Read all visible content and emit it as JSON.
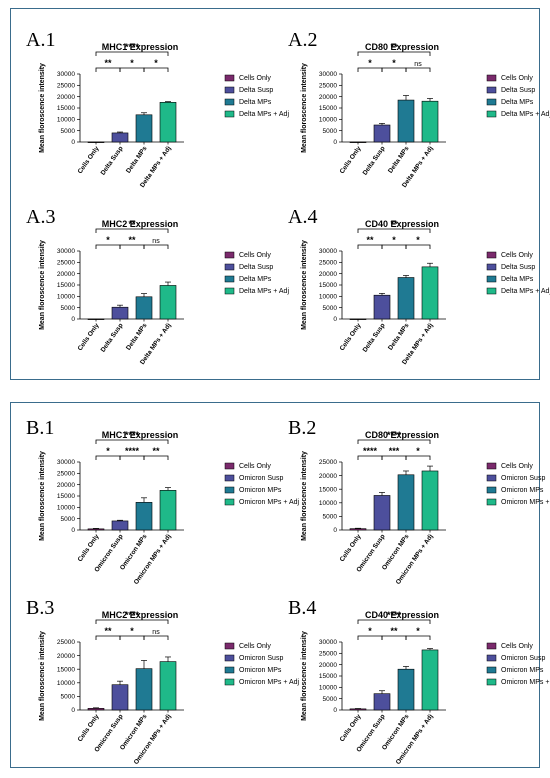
{
  "colors": {
    "frame": "#3a6c8c",
    "bar_colors": [
      "#7a2a6c",
      "#4d4f9c",
      "#1f7a93",
      "#1fb989"
    ]
  },
  "chart_data": [
    {
      "panel": "A.1",
      "type": "bar",
      "title": "MHC1 Expression",
      "ylabel": "Mean floroscence intensity",
      "categories": [
        "Cells Only",
        "Delta Susp",
        "Delta MPs",
        "Delta MPs + Adj"
      ],
      "values": [
        0,
        4000,
        12000,
        17500
      ],
      "errors": [
        0,
        400,
        900,
        300
      ],
      "yticks": [
        0,
        5000,
        10000,
        15000,
        20000,
        25000,
        30000
      ],
      "ylim": [
        0,
        30000
      ],
      "legend": [
        "Cells Only",
        "Delta Susp",
        "Delta MPs",
        "Delta MPs + Adj"
      ],
      "significance": [
        {
          "from": 0,
          "to": 1,
          "label": "**",
          "level": 0
        },
        {
          "from": 1,
          "to": 2,
          "label": "*",
          "level": 0
        },
        {
          "from": 2,
          "to": 3,
          "label": "*",
          "level": 0
        },
        {
          "from": 0,
          "to": 3,
          "label": "****",
          "level": 1
        }
      ]
    },
    {
      "panel": "A.2",
      "type": "bar",
      "title": "CD80 Expression",
      "ylabel": "Mean floroscence intensity",
      "categories": [
        "Cells Only",
        "Delta Susp",
        "Delta MPs",
        "Delta MPs + Adj"
      ],
      "values": [
        0,
        7500,
        18500,
        18000
      ],
      "errors": [
        0,
        700,
        2000,
        1200
      ],
      "yticks": [
        0,
        5000,
        10000,
        15000,
        20000,
        25000,
        30000
      ],
      "ylim": [
        0,
        30000
      ],
      "legend": [
        "Cells Only",
        "Delta Susp",
        "Delta MPs",
        "Delta MPs + Adj"
      ],
      "significance": [
        {
          "from": 0,
          "to": 1,
          "label": "*",
          "level": 0
        },
        {
          "from": 1,
          "to": 2,
          "label": "*",
          "level": 0
        },
        {
          "from": 2,
          "to": 3,
          "label": "ns",
          "level": 0
        },
        {
          "from": 0,
          "to": 3,
          "label": "**",
          "level": 1
        }
      ]
    },
    {
      "panel": "A.3",
      "type": "bar",
      "title": "MHC2 Expression",
      "ylabel": "Mean floroscence intensity",
      "categories": [
        "Cells Only",
        "Delta Susp",
        "Delta MPs",
        "Delta MPs + Adj"
      ],
      "values": [
        0,
        5200,
        9800,
        14800
      ],
      "errors": [
        0,
        900,
        1400,
        1500
      ],
      "yticks": [
        0,
        5000,
        10000,
        15000,
        20000,
        25000,
        30000
      ],
      "ylim": [
        0,
        30000
      ],
      "legend": [
        "Cells Only",
        "Delta Susp",
        "Delta MPs",
        "Delta MPs + Adj"
      ],
      "significance": [
        {
          "from": 0,
          "to": 1,
          "label": "*",
          "level": 0
        },
        {
          "from": 1,
          "to": 2,
          "label": "**",
          "level": 0
        },
        {
          "from": 2,
          "to": 3,
          "label": "ns",
          "level": 0
        },
        {
          "from": 0,
          "to": 3,
          "label": "**",
          "level": 1
        }
      ]
    },
    {
      "panel": "A.4",
      "type": "bar",
      "title": "CD40 Expression",
      "ylabel": "Mean floroscence intensity",
      "categories": [
        "Cells Only",
        "Delta Susp",
        "Delta MPs",
        "Delta MPs + Adj"
      ],
      "values": [
        0,
        10500,
        18300,
        23000
      ],
      "errors": [
        0,
        800,
        900,
        1600
      ],
      "yticks": [
        0,
        5000,
        10000,
        15000,
        20000,
        25000,
        30000
      ],
      "ylim": [
        0,
        30000
      ],
      "legend": [
        "Cells Only",
        "Delta Susp",
        "Delta MPs",
        "Delta MPs + Adj"
      ],
      "significance": [
        {
          "from": 0,
          "to": 1,
          "label": "**",
          "level": 0
        },
        {
          "from": 1,
          "to": 2,
          "label": "*",
          "level": 0
        },
        {
          "from": 2,
          "to": 3,
          "label": "*",
          "level": 0
        },
        {
          "from": 0,
          "to": 3,
          "label": "**",
          "level": 1
        }
      ]
    },
    {
      "panel": "B.1",
      "type": "bar",
      "title": "MHC1 Expression",
      "ylabel": "Mean floroscence intensity",
      "categories": [
        "Cells Only",
        "Omicron Susp",
        "Omicron MPs",
        "Omicron MPs + Adj"
      ],
      "values": [
        500,
        4000,
        12200,
        17500
      ],
      "errors": [
        200,
        300,
        2000,
        1200
      ],
      "yticks": [
        0,
        5000,
        10000,
        15000,
        20000,
        25000,
        30000
      ],
      "ylim": [
        0,
        30000
      ],
      "legend": [
        "Cells Only",
        "Omicron Susp",
        "Omicron MPs",
        "Omicron MPs + Adj"
      ],
      "significance": [
        {
          "from": 0,
          "to": 1,
          "label": "*",
          "level": 0
        },
        {
          "from": 1,
          "to": 2,
          "label": "****",
          "level": 0
        },
        {
          "from": 2,
          "to": 3,
          "label": "**",
          "level": 0
        },
        {
          "from": 0,
          "to": 3,
          "label": "****",
          "level": 1
        }
      ]
    },
    {
      "panel": "B.2",
      "type": "bar",
      "title": "CD80 Expression",
      "ylabel": "Mean floroscence intensity",
      "categories": [
        "Cells Only",
        "Omicron Susp",
        "Omicron MPs",
        "Omicron MPs + Adj"
      ],
      "values": [
        500,
        12700,
        20300,
        21700
      ],
      "errors": [
        150,
        1100,
        1400,
        1800
      ],
      "yticks": [
        0,
        5000,
        10000,
        15000,
        20000,
        25000
      ],
      "ylim": [
        0,
        25000
      ],
      "legend": [
        "Cells Only",
        "Omicron Susp",
        "Omicron MPs",
        "Omicron MPs + Adj"
      ],
      "significance": [
        {
          "from": 0,
          "to": 1,
          "label": "****",
          "level": 0
        },
        {
          "from": 1,
          "to": 2,
          "label": "***",
          "level": 0
        },
        {
          "from": 2,
          "to": 3,
          "label": "*",
          "level": 0
        },
        {
          "from": 0,
          "to": 3,
          "label": "****",
          "level": 1
        }
      ]
    },
    {
      "panel": "B.3",
      "type": "bar",
      "title": "MHC2 Expression",
      "ylabel": "Mean floroscence intensity",
      "categories": [
        "Cells Only",
        "Omicron Susp",
        "Omicron MPs",
        "Omicron MPs + Adj"
      ],
      "values": [
        600,
        9300,
        15200,
        17800
      ],
      "errors": [
        200,
        1300,
        3000,
        1700
      ],
      "yticks": [
        0,
        5000,
        10000,
        15000,
        20000,
        25000
      ],
      "ylim": [
        0,
        25000
      ],
      "legend": [
        "Cells Only",
        "Omicron Susp",
        "Omicron MPs",
        "Omicron MPs + Adj"
      ],
      "significance": [
        {
          "from": 0,
          "to": 1,
          "label": "**",
          "level": 0
        },
        {
          "from": 1,
          "to": 2,
          "label": "*",
          "level": 0
        },
        {
          "from": 2,
          "to": 3,
          "label": "ns",
          "level": 0
        },
        {
          "from": 0,
          "to": 3,
          "label": "****",
          "level": 1
        }
      ]
    },
    {
      "panel": "B.4",
      "type": "bar",
      "title": "CD40 Expression",
      "ylabel": "Mean floroscence intensity",
      "categories": [
        "Cells Only",
        "Omicron Susp",
        "Omicron MPs",
        "Omicron MPs + Adj"
      ],
      "values": [
        500,
        7200,
        18000,
        26500
      ],
      "errors": [
        150,
        1300,
        1200,
        600
      ],
      "yticks": [
        0,
        5000,
        10000,
        15000,
        20000,
        25000,
        30000
      ],
      "ylim": [
        0,
        30000
      ],
      "legend": [
        "Cells Only",
        "Omicron Susp",
        "Omicron MPs",
        "Omicron MPs + Adj"
      ],
      "significance": [
        {
          "from": 0,
          "to": 1,
          "label": "*",
          "level": 0
        },
        {
          "from": 1,
          "to": 2,
          "label": "**",
          "level": 0
        },
        {
          "from": 2,
          "to": 3,
          "label": "*",
          "level": 0
        },
        {
          "from": 0,
          "to": 3,
          "label": "****",
          "level": 1
        }
      ]
    }
  ]
}
